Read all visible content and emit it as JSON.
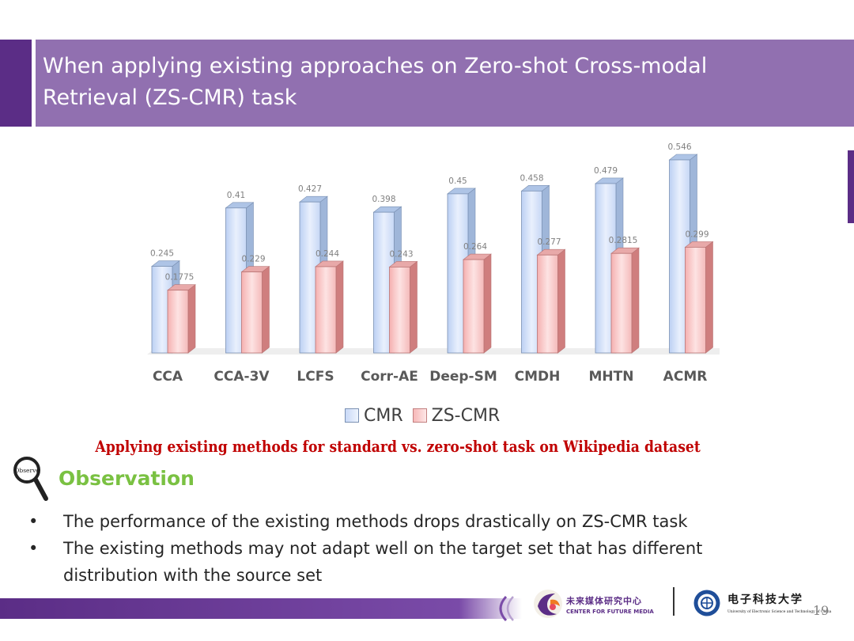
{
  "slide": {
    "title_line1": "When applying existing approaches on Zero-shot Cross-modal",
    "title_line2": "Retrieval (ZS-CMR) task",
    "caption": "Applying existing methods for standard vs. zero-shot task on Wikipedia dataset",
    "observe_icon_text": "Observe",
    "observation_title": "Observation",
    "bullets": [
      "The performance of the existing methods drops drastically on ZS-CMR task",
      "The existing methods may not adapt well on the target set that has different",
      "distribution with the source set"
    ],
    "footer": {
      "ccfm_cn": "未来媒体研究中心",
      "ccfm_en": "CENTER FOR FUTURE MEDIA",
      "uestc_cn": "电子科技大学",
      "uestc_en": "University of Electronic Science and Technology of China",
      "page_number": "19"
    }
  },
  "colors": {
    "title_bar": "#9170b0",
    "accent": "#5b2d86",
    "caption_red": "#c00000",
    "observation_green": "#7ac142",
    "cmr_bar": "#d6e4fb",
    "zs_bar": "#f9c9c9"
  },
  "chart_data": {
    "type": "bar",
    "style": "3d-clustered",
    "categories": [
      "CCA",
      "CCA-3V",
      "LCFS",
      "Corr-AE",
      "Deep-SM",
      "CMDH",
      "MHTN",
      "ACMR"
    ],
    "series": [
      {
        "name": "CMR",
        "values": [
          0.245,
          0.41,
          0.427,
          0.398,
          0.45,
          0.458,
          0.479,
          0.546
        ],
        "labels": [
          "0.245",
          "0.41",
          "0.427",
          "0.398",
          "0.45",
          "0.458",
          "0.479",
          "0.546"
        ]
      },
      {
        "name": "ZS-CMR",
        "values": [
          0.1775,
          0.229,
          0.244,
          0.243,
          0.264,
          0.277,
          0.2815,
          0.299
        ],
        "labels": [
          "0.1775",
          "0.229",
          "0.244",
          "0.243",
          "0.264",
          "0.277",
          "0.2815",
          "0.299"
        ]
      }
    ],
    "title": "",
    "xlabel": "",
    "ylabel": "",
    "ylim": [
      0,
      0.546
    ],
    "grid": false,
    "legend": "bottom-center"
  }
}
